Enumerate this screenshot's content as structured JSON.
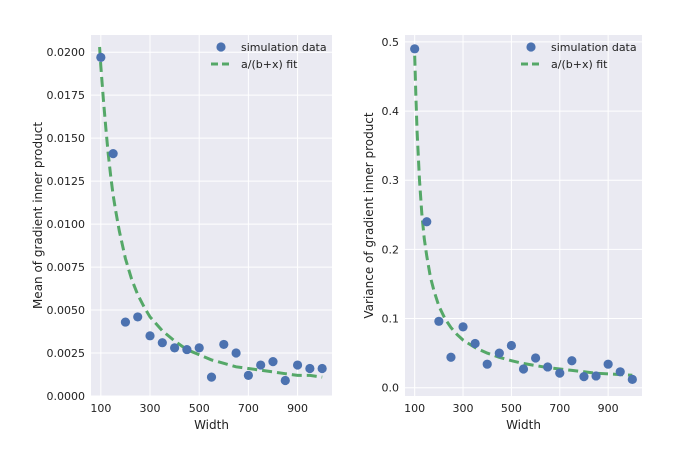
{
  "chart_data": [
    {
      "type": "scatter",
      "xlabel": "Width",
      "ylabel": "Mean of gradient inner product",
      "xlim": [
        60,
        1040
      ],
      "ylim": [
        0,
        0.021
      ],
      "xticks": [
        100,
        300,
        500,
        700,
        900
      ],
      "xtick_labels": [
        "100",
        "300",
        "500",
        "700",
        "900"
      ],
      "yticks": [
        0,
        0.0025,
        0.005,
        0.0075,
        0.01,
        0.0125,
        0.015,
        0.0175,
        0.02
      ],
      "ytick_labels": [
        "0.0000",
        "0.0025",
        "0.0050",
        "0.0075",
        "0.0100",
        "0.0125",
        "0.0150",
        "0.0175",
        "0.0200"
      ],
      "grid": true,
      "legend_position": "top-right",
      "series": [
        {
          "name": "simulation data",
          "kind": "scatter",
          "color": "#4c72b0",
          "x": [
            100,
            150,
            200,
            250,
            300,
            350,
            400,
            450,
            500,
            550,
            600,
            650,
            700,
            750,
            800,
            850,
            900,
            950,
            1000
          ],
          "y": [
            0.0197,
            0.0141,
            0.0043,
            0.0046,
            0.0035,
            0.0031,
            0.0028,
            0.0027,
            0.0028,
            0.0011,
            0.003,
            0.0025,
            0.0012,
            0.0018,
            0.002,
            0.0009,
            0.0018,
            0.0016,
            0.0016
          ]
        },
        {
          "name": "a/(b+x) fit",
          "kind": "line",
          "style": "dashed",
          "color": "#55a868",
          "x": [
            95,
            100,
            110,
            120,
            130,
            140,
            150,
            160,
            175,
            200,
            225,
            250,
            275,
            300,
            350,
            400,
            450,
            500,
            550,
            600,
            650,
            700,
            750,
            800,
            850,
            900,
            950,
            1000
          ],
          "y": [
            0.0203,
            0.0192,
            0.0173,
            0.0156,
            0.0141,
            0.0128,
            0.0117,
            0.0108,
            0.0096,
            0.008,
            0.0068,
            0.0059,
            0.0052,
            0.0046,
            0.0038,
            0.0032,
            0.0027,
            0.0024,
            0.0021,
            0.0019,
            0.0017,
            0.0016,
            0.0015,
            0.0014,
            0.0013,
            0.0012,
            0.0012,
            0.0011
          ]
        }
      ]
    },
    {
      "type": "scatter",
      "xlabel": "Width",
      "ylabel": "Variance of gradient inner product",
      "xlim": [
        60,
        1040
      ],
      "ylim": [
        -0.012,
        0.51
      ],
      "xticks": [
        100,
        300,
        500,
        700,
        900
      ],
      "xtick_labels": [
        "100",
        "300",
        "500",
        "700",
        "900"
      ],
      "yticks": [
        0,
        0.1,
        0.2,
        0.3,
        0.4,
        0.5
      ],
      "ytick_labels": [
        "0.0",
        "0.1",
        "0.2",
        "0.3",
        "0.4",
        "0.5"
      ],
      "grid": true,
      "legend_position": "top-right",
      "series": [
        {
          "name": "simulation data",
          "kind": "scatter",
          "color": "#4c72b0",
          "x": [
            100,
            150,
            200,
            250,
            300,
            350,
            400,
            450,
            500,
            550,
            600,
            650,
            700,
            750,
            800,
            850,
            900,
            950,
            1000
          ],
          "y": [
            0.49,
            0.24,
            0.096,
            0.044,
            0.088,
            0.064,
            0.034,
            0.05,
            0.061,
            0.027,
            0.043,
            0.03,
            0.021,
            0.039,
            0.016,
            0.017,
            0.034,
            0.023,
            0.012
          ]
        },
        {
          "name": "a/(b+x) fit",
          "kind": "line",
          "style": "dashed",
          "color": "#55a868",
          "x": [
            100,
            105,
            110,
            120,
            130,
            140,
            150,
            165,
            180,
            200,
            225,
            250,
            275,
            300,
            350,
            400,
            450,
            500,
            550,
            600,
            650,
            700,
            750,
            800,
            850,
            900,
            950,
            1000
          ],
          "y": [
            0.48,
            0.42,
            0.37,
            0.3,
            0.25,
            0.215,
            0.19,
            0.16,
            0.14,
            0.118,
            0.1,
            0.087,
            0.077,
            0.069,
            0.058,
            0.05,
            0.044,
            0.039,
            0.035,
            0.032,
            0.029,
            0.027,
            0.025,
            0.023,
            0.021,
            0.02,
            0.019,
            0.018
          ]
        }
      ]
    }
  ]
}
